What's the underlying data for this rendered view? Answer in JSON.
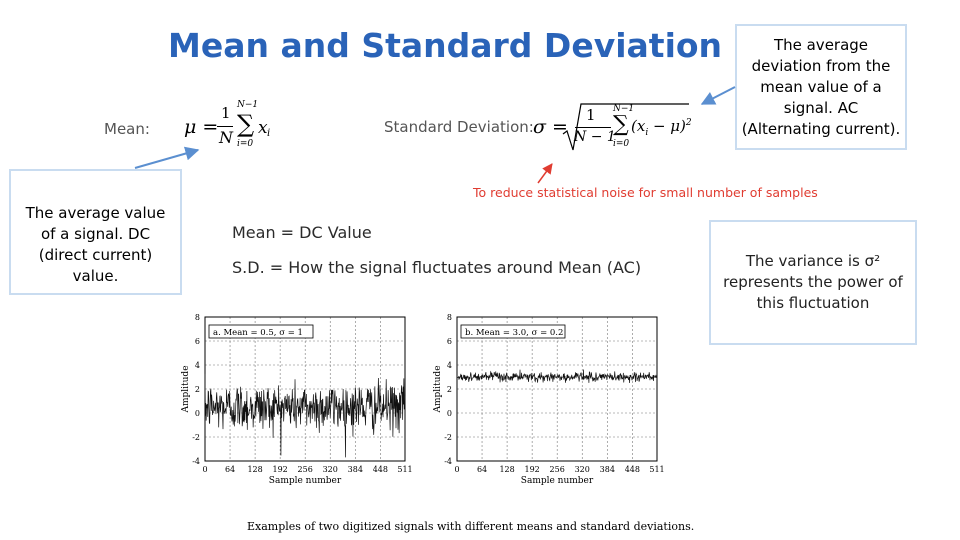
{
  "slide": {
    "title": "Mean and Standard Deviation",
    "mean_label": "Mean:",
    "sd_label": "Standard Deviation:",
    "noise_note": "To reduce statistical noise for small number of samples",
    "mean_line": "Mean = DC Value",
    "sd_line": "S.D. = How the signal fluctuates around Mean (AC)",
    "left_callout": "The average value of a signal.  DC (direct current) value.",
    "right_callout": "The average deviation from the mean value of a signal.  AC (Alternating current).",
    "variance_callout_prefix": "The variance is σ²",
    "variance_callout_rest": "represents the power of this fluctuation",
    "caption": "Examples of two digitized signals with different means and standard deviations.",
    "colors": {
      "title": "#2a63b8",
      "note": "#e03c31",
      "arrow": "#5b8fd0"
    }
  },
  "formulas": {
    "mean": {
      "lhs": "μ =",
      "num": "1",
      "den": "N",
      "sum_top": "N−1",
      "sum_bottom": "i=0",
      "term": "x",
      "sub": "i"
    },
    "sd": {
      "lhs": "σ =",
      "num": "1",
      "den": "N − 1",
      "sum_top": "N−1",
      "sum_bottom": "i=0",
      "term": "(x",
      "sub": "i",
      "tail": " − μ)",
      "sup": "2"
    }
  },
  "chart_data": [
    {
      "type": "line",
      "title": "a.  Mean = 0.5, σ = 1",
      "xlabel": "Sample number",
      "ylabel": "Amplitude",
      "xlim": [
        0,
        511
      ],
      "ylim": [
        -4,
        8
      ],
      "xticks": [
        "0",
        "64",
        "128",
        "192",
        "256",
        "320",
        "384",
        "448",
        "511"
      ],
      "yticks": [
        "-4",
        "-2",
        "0",
        "2",
        "4",
        "6",
        "8"
      ],
      "mean": 0.5,
      "sd": 1,
      "grid": true
    },
    {
      "type": "line",
      "title": "b.  Mean = 3.0, σ = 0.2",
      "xlabel": "Sample number",
      "ylabel": "Amplitude",
      "xlim": [
        0,
        511
      ],
      "ylim": [
        -4,
        8
      ],
      "xticks": [
        "0",
        "64",
        "128",
        "192",
        "256",
        "320",
        "384",
        "448",
        "511"
      ],
      "yticks": [
        "-4",
        "-2",
        "0",
        "2",
        "4",
        "6",
        "8"
      ],
      "mean": 3.0,
      "sd": 0.2,
      "grid": true
    }
  ]
}
